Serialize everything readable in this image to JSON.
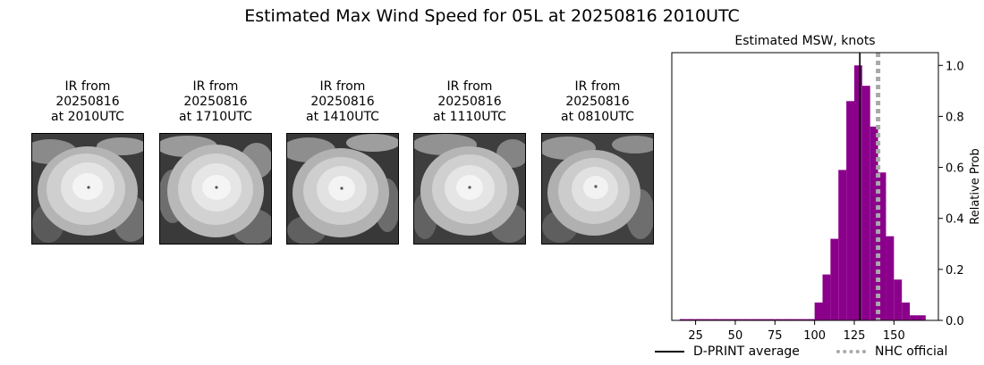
{
  "page": {
    "title": "Estimated Max Wind Speed for 05L at 20250816 2010UTC"
  },
  "ir_panels": [
    {
      "line1": "IR from",
      "line2": "20250816",
      "line3": "at 2010UTC"
    },
    {
      "line1": "IR from",
      "line2": "20250816",
      "line3": "at 1710UTC"
    },
    {
      "line1": "IR from",
      "line2": "20250816",
      "line3": "at 1410UTC"
    },
    {
      "line1": "IR from",
      "line2": "20250816",
      "line3": "at 1110UTC"
    },
    {
      "line1": "IR from",
      "line2": "20250816",
      "line3": "at 0810UTC"
    }
  ],
  "legend": {
    "dprint_label": "D-PRINT average",
    "nhc_label": "NHC official"
  },
  "colors": {
    "bars": "#8b008b",
    "dprint_line": "#000000",
    "nhc_line": "#a9a9a9"
  },
  "chart_data": {
    "type": "bar",
    "title": "Estimated MSW, knots",
    "ylabel": "Relative Prob",
    "xlim": [
      10,
      178
    ],
    "ylim": [
      0,
      1.05
    ],
    "bin_width": 5,
    "x_ticks": [
      25,
      50,
      75,
      100,
      125,
      150
    ],
    "y_ticks": [
      0.0,
      0.2,
      0.4,
      0.6,
      0.8,
      1.0
    ],
    "bins_start": [
      15,
      20,
      25,
      30,
      35,
      40,
      45,
      50,
      55,
      60,
      65,
      70,
      75,
      80,
      85,
      90,
      95,
      100,
      105,
      110,
      115,
      120,
      125,
      130,
      135,
      140,
      145,
      150,
      155,
      160,
      165
    ],
    "values": [
      0.005,
      0.005,
      0.005,
      0.005,
      0.005,
      0.005,
      0.005,
      0.005,
      0.005,
      0.005,
      0.005,
      0.005,
      0.005,
      0.005,
      0.005,
      0.005,
      0.005,
      0.07,
      0.18,
      0.32,
      0.59,
      0.86,
      1.0,
      0.92,
      0.76,
      0.58,
      0.33,
      0.16,
      0.07,
      0.02,
      0.02
    ],
    "dprint_average": 128.5,
    "nhc_official": 140,
    "grid": false
  }
}
